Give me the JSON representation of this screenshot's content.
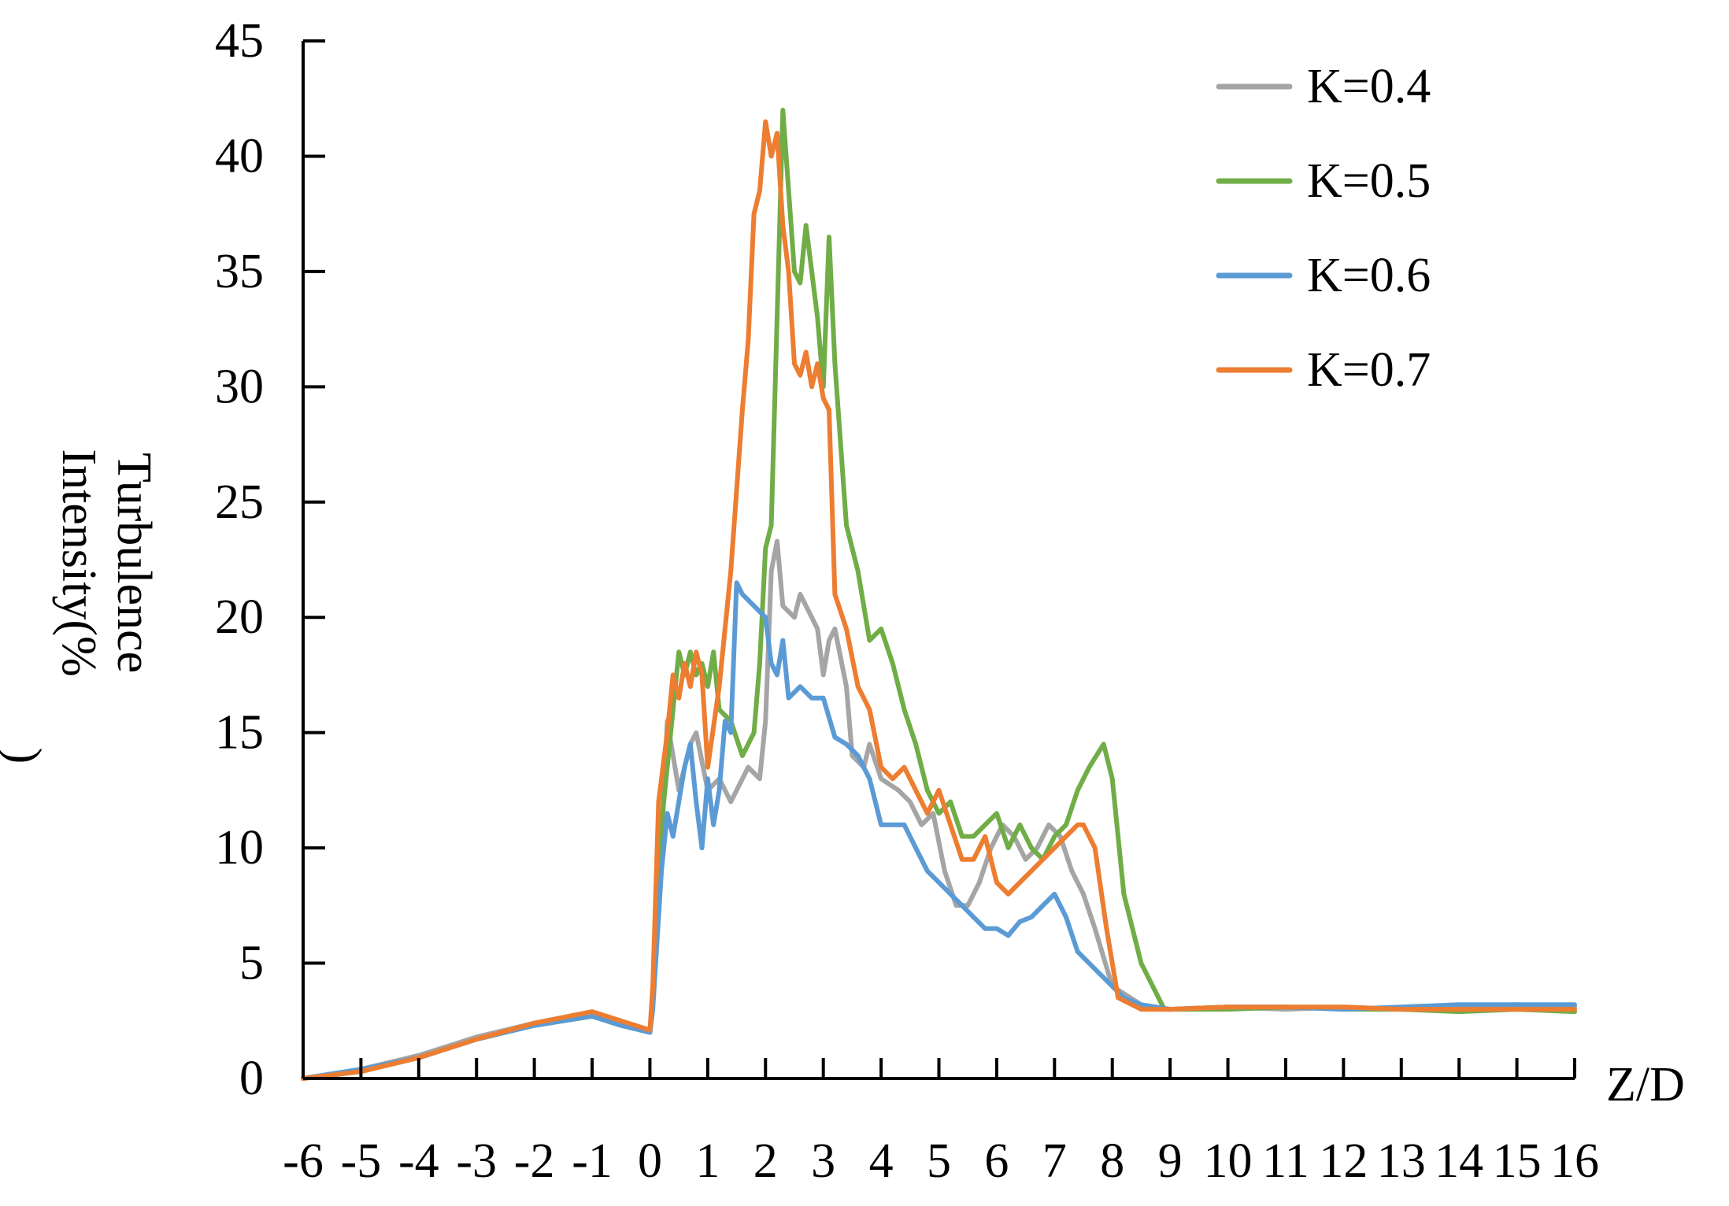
{
  "chart_data": {
    "type": "line",
    "title": "",
    "xlabel": "Z/D",
    "ylabel_lines": [
      "Turbulence",
      "Intensity(%",
      ")"
    ],
    "xlim": [
      -6,
      16
    ],
    "ylim": [
      0,
      45
    ],
    "x_ticks": [
      -6,
      -5,
      -4,
      -3,
      -2,
      -1,
      0,
      1,
      2,
      3,
      4,
      5,
      6,
      7,
      8,
      9,
      10,
      11,
      12,
      13,
      14,
      15,
      16
    ],
    "y_ticks": [
      0,
      5,
      10,
      15,
      20,
      25,
      30,
      35,
      40,
      45
    ],
    "grid": false,
    "legend_position": "top-right",
    "series": [
      {
        "name": "K=0.4",
        "color": "#A5A5A5",
        "x": [
          -6,
          -5,
          -4,
          -3,
          -2,
          -1,
          -0.5,
          0,
          0.05,
          0.2,
          0.3,
          0.5,
          0.7,
          0.8,
          1.0,
          1.2,
          1.4,
          1.5,
          1.7,
          1.9,
          2.0,
          2.1,
          2.2,
          2.3,
          2.5,
          2.6,
          2.8,
          2.9,
          3.0,
          3.1,
          3.2,
          3.4,
          3.5,
          3.7,
          3.8,
          4.0,
          4.3,
          4.5,
          4.7,
          4.9,
          5.1,
          5.3,
          5.5,
          5.7,
          5.9,
          6.1,
          6.3,
          6.5,
          6.7,
          6.9,
          7.1,
          7.3,
          7.5,
          7.7,
          8.0,
          8.5,
          9,
          10,
          11,
          12,
          13,
          14,
          15,
          16
        ],
        "y": [
          0,
          0.4,
          1.0,
          1.8,
          2.4,
          2.8,
          2.4,
          2.0,
          3.2,
          10.0,
          15.5,
          12.5,
          14.5,
          15.0,
          12.5,
          13.0,
          12.0,
          12.5,
          13.5,
          13.0,
          15.5,
          22.0,
          23.3,
          20.5,
          20.0,
          21.0,
          20.0,
          19.5,
          17.5,
          19.0,
          19.5,
          17.0,
          14.0,
          13.5,
          14.5,
          13.0,
          12.5,
          12.0,
          11.0,
          11.5,
          9.0,
          7.5,
          7.5,
          8.5,
          10.0,
          11.0,
          10.5,
          9.5,
          10.0,
          11.0,
          10.5,
          9.0,
          8.0,
          6.5,
          4.0,
          3.2,
          3.0,
          3.1,
          3.0,
          3.1,
          3.0,
          3.1,
          3.2,
          3.1
        ]
      },
      {
        "name": "K=0.5",
        "color": "#70AD47",
        "x": [
          -6,
          -5,
          -4,
          -3,
          -2,
          -1,
          -0.5,
          0,
          0.05,
          0.2,
          0.4,
          0.5,
          0.6,
          0.7,
          0.8,
          0.9,
          1.0,
          1.1,
          1.2,
          1.4,
          1.6,
          1.8,
          1.9,
          2.0,
          2.1,
          2.2,
          2.3,
          2.5,
          2.6,
          2.7,
          2.8,
          2.9,
          3.0,
          3.1,
          3.2,
          3.4,
          3.6,
          3.8,
          4.0,
          4.2,
          4.4,
          4.6,
          4.8,
          5.0,
          5.2,
          5.4,
          5.6,
          5.8,
          6.0,
          6.2,
          6.4,
          6.6,
          6.8,
          7.0,
          7.2,
          7.4,
          7.6,
          7.85,
          8.0,
          8.2,
          8.5,
          8.9,
          10,
          11,
          12,
          13,
          14,
          15,
          16
        ],
        "y": [
          0,
          0.3,
          0.9,
          1.7,
          2.3,
          2.7,
          2.3,
          2.0,
          3.5,
          11.0,
          16.0,
          18.5,
          17.5,
          18.5,
          17.5,
          18.0,
          17.0,
          18.5,
          16.0,
          15.5,
          14.0,
          15.0,
          18.0,
          23.0,
          24.0,
          33.0,
          42.0,
          35.0,
          34.5,
          37.0,
          35.0,
          33.0,
          30.0,
          36.5,
          31.0,
          24.0,
          22.0,
          19.0,
          19.5,
          18.0,
          16.0,
          14.5,
          12.5,
          11.5,
          12.0,
          10.5,
          10.5,
          11.0,
          11.5,
          10.0,
          11.0,
          10.0,
          9.5,
          10.5,
          11.0,
          12.5,
          13.5,
          14.5,
          13.0,
          8.0,
          5.0,
          3.0,
          3.0,
          3.1,
          3.0,
          3.0,
          2.9,
          3.0,
          2.9
        ]
      },
      {
        "name": "K=0.6",
        "color": "#5B9BD5",
        "x": [
          -6,
          -5,
          -4,
          -3,
          -2,
          -1,
          -0.5,
          0,
          0.05,
          0.2,
          0.3,
          0.4,
          0.6,
          0.7,
          0.8,
          0.9,
          1.0,
          1.1,
          1.2,
          1.3,
          1.4,
          1.5,
          1.6,
          1.8,
          2.0,
          2.1,
          2.2,
          2.3,
          2.4,
          2.6,
          2.8,
          3.0,
          3.2,
          3.4,
          3.6,
          3.8,
          4.0,
          4.2,
          4.4,
          4.6,
          4.8,
          5.0,
          5.2,
          5.4,
          5.6,
          5.8,
          6.0,
          6.2,
          6.4,
          6.6,
          6.8,
          7.0,
          7.2,
          7.4,
          7.6,
          7.8,
          8.0,
          8.2,
          8.5,
          9,
          10,
          11,
          12,
          13,
          14,
          15,
          16
        ],
        "y": [
          0,
          0.4,
          0.9,
          1.7,
          2.3,
          2.7,
          2.3,
          2.0,
          3.0,
          9.0,
          11.5,
          10.5,
          13.5,
          14.5,
          12.0,
          10.0,
          13.0,
          11.0,
          12.5,
          15.5,
          15.0,
          21.5,
          21.0,
          20.5,
          20.0,
          18.0,
          17.5,
          19.0,
          16.5,
          17.0,
          16.5,
          16.5,
          14.8,
          14.5,
          14.0,
          13.0,
          11.0,
          11.0,
          11.0,
          10.0,
          9.0,
          8.5,
          8.0,
          7.5,
          7.0,
          6.5,
          6.5,
          6.2,
          6.8,
          7.0,
          7.5,
          8.0,
          7.0,
          5.5,
          5.0,
          4.5,
          4.0,
          3.5,
          3.2,
          3.0,
          3.1,
          3.1,
          3.0,
          3.1,
          3.2,
          3.2,
          3.2
        ]
      },
      {
        "name": "K=0.7",
        "color": "#ED7D31",
        "x": [
          -6,
          -5,
          -4,
          -3,
          -2,
          -1,
          -0.5,
          0,
          0.05,
          0.15,
          0.3,
          0.4,
          0.5,
          0.6,
          0.7,
          0.8,
          0.9,
          1.0,
          1.2,
          1.4,
          1.6,
          1.7,
          1.8,
          1.9,
          2.0,
          2.1,
          2.2,
          2.3,
          2.4,
          2.5,
          2.6,
          2.7,
          2.8,
          2.9,
          3.0,
          3.1,
          3.2,
          3.4,
          3.6,
          3.8,
          4.0,
          4.2,
          4.4,
          4.6,
          4.8,
          5.0,
          5.2,
          5.4,
          5.6,
          5.8,
          6.0,
          6.2,
          6.4,
          6.6,
          6.8,
          7.0,
          7.2,
          7.4,
          7.5,
          7.7,
          7.9,
          8.1,
          8.5,
          9,
          10,
          11,
          12,
          13,
          14,
          15,
          16
        ],
        "y": [
          0,
          0.3,
          0.9,
          1.7,
          2.4,
          2.9,
          2.5,
          2.1,
          4.0,
          12.0,
          15.0,
          17.5,
          16.5,
          18.0,
          17.0,
          18.5,
          17.5,
          13.5,
          17.0,
          22.0,
          29.0,
          32.0,
          37.5,
          38.5,
          41.5,
          40.0,
          41.0,
          37.0,
          35.0,
          31.0,
          30.5,
          31.5,
          30.0,
          31.0,
          29.5,
          29.0,
          21.0,
          19.5,
          17.0,
          16.0,
          13.5,
          13.0,
          13.5,
          12.5,
          11.5,
          12.5,
          11.0,
          9.5,
          9.5,
          10.5,
          8.5,
          8.0,
          8.5,
          9.0,
          9.5,
          10.0,
          10.5,
          11.0,
          11.0,
          10.0,
          6.5,
          3.5,
          3.0,
          3.0,
          3.1,
          3.1,
          3.1,
          3.0,
          3.0,
          3.0,
          3.0
        ]
      }
    ]
  }
}
